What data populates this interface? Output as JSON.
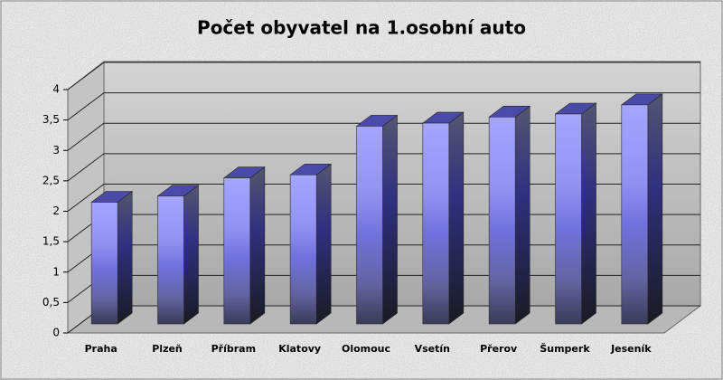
{
  "chart_data": {
    "type": "bar3d",
    "title": "Počet obyvatel na 1.osobní auto",
    "categories": [
      "Praha",
      "Plzeň",
      "Příbram",
      "Klatovy",
      "Olomouc",
      "Vsetín",
      "Přerov",
      "Šumperk",
      "Jeseník"
    ],
    "values": [
      2.0,
      2.1,
      2.4,
      2.45,
      3.25,
      3.3,
      3.4,
      3.45,
      3.6
    ],
    "color": "#9a9aff",
    "ylim": [
      0,
      4
    ],
    "yticks": [
      0,
      {
        "value": 0.5,
        "label": "0,5"
      },
      1,
      {
        "value": 1.5,
        "label": "1,5"
      },
      2,
      {
        "value": 2.5,
        "label": "2,5"
      },
      3,
      {
        "value": 3.5,
        "label": "3,5"
      },
      4
    ],
    "grid": true
  }
}
